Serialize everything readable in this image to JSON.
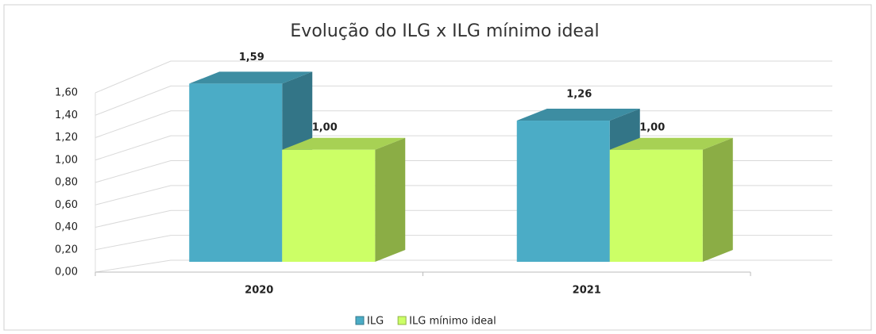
{
  "chart_data": {
    "type": "bar3d",
    "title": "Evolução do ILG x ILG mínimo ideal",
    "categories": [
      "2020",
      "2021"
    ],
    "series": [
      {
        "name": "ILG",
        "color": "#4bacc6",
        "values": [
          1.59,
          1.26
        ],
        "value_labels": [
          "1,59",
          "1,26"
        ]
      },
      {
        "name": "ILG mínimo ideal",
        "color": "#ccff66",
        "values": [
          1.0,
          1.0
        ],
        "value_labels": [
          "1,00",
          "1,00"
        ]
      }
    ],
    "ylim": [
      0,
      1.6
    ],
    "yticks": [
      {
        "value": 0,
        "label": "0,00"
      },
      {
        "value": 0.2,
        "label": "0,20"
      },
      {
        "value": 0.4,
        "label": "0,40"
      },
      {
        "value": 0.6,
        "label": "0,60"
      },
      {
        "value": 0.8,
        "label": "0,80"
      },
      {
        "value": 1.0,
        "label": "1,00"
      },
      {
        "value": 1.2,
        "label": "1,20"
      },
      {
        "value": 1.4,
        "label": "1,40"
      },
      {
        "value": 1.6,
        "label": "1,60"
      }
    ],
    "grid": true,
    "legend": "bottom"
  }
}
